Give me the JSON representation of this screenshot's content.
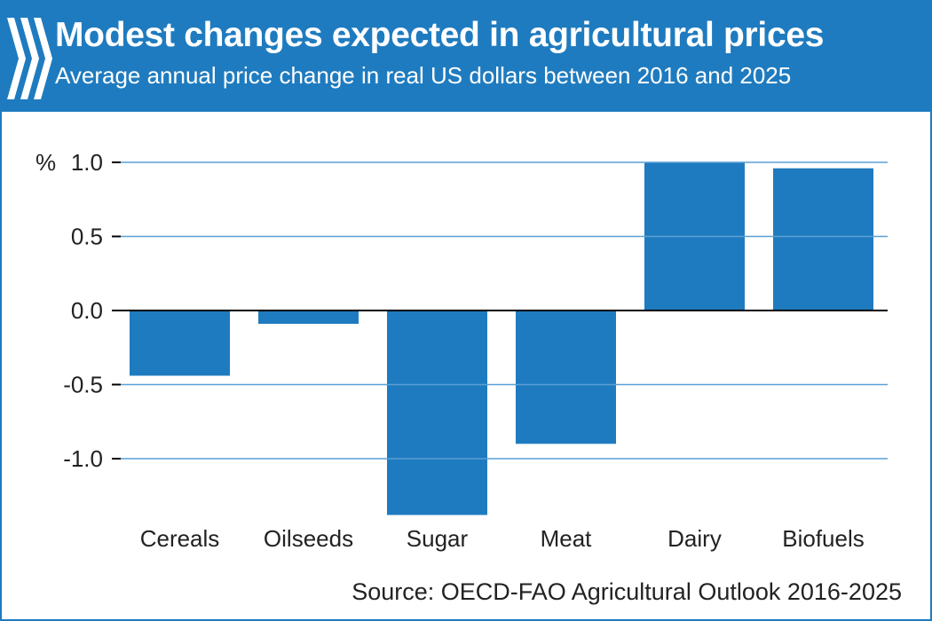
{
  "colors": {
    "brand": "#1f7bbf",
    "bar": "#1f7bbf",
    "gridline": "#5aa0d6",
    "axis": "#000000",
    "text": "#222222"
  },
  "header": {
    "logo_icon": "oecd-chevrons-icon",
    "title": "Modest changes expected in agricultural prices",
    "subtitle": "Average annual price change in real US dollars between 2016 and 2025"
  },
  "source": "Source: OECD-FAO Agricultural Outlook 2016-2025",
  "chart_data": {
    "type": "bar",
    "title": "Modest changes expected in agricultural prices",
    "subtitle": "Average annual price change in real US dollars between 2016 and 2025",
    "unit_label": "%",
    "categories": [
      "Cereals",
      "Oilseeds",
      "Sugar",
      "Meat",
      "Dairy",
      "Biofuels"
    ],
    "values": [
      -0.44,
      -0.09,
      -1.38,
      -0.9,
      1.0,
      0.96
    ],
    "ylim": [
      -1.38,
      1.0
    ],
    "yticks": [
      1.0,
      0.5,
      0.0,
      -0.5,
      -1.0
    ],
    "ytick_labels": [
      "1.0",
      "0.5",
      "0.0",
      "-0.5",
      "-1.0"
    ],
    "xlabel": "",
    "ylabel": "%",
    "grid": "horizontal gridlines shown over bars",
    "legend": "none"
  }
}
